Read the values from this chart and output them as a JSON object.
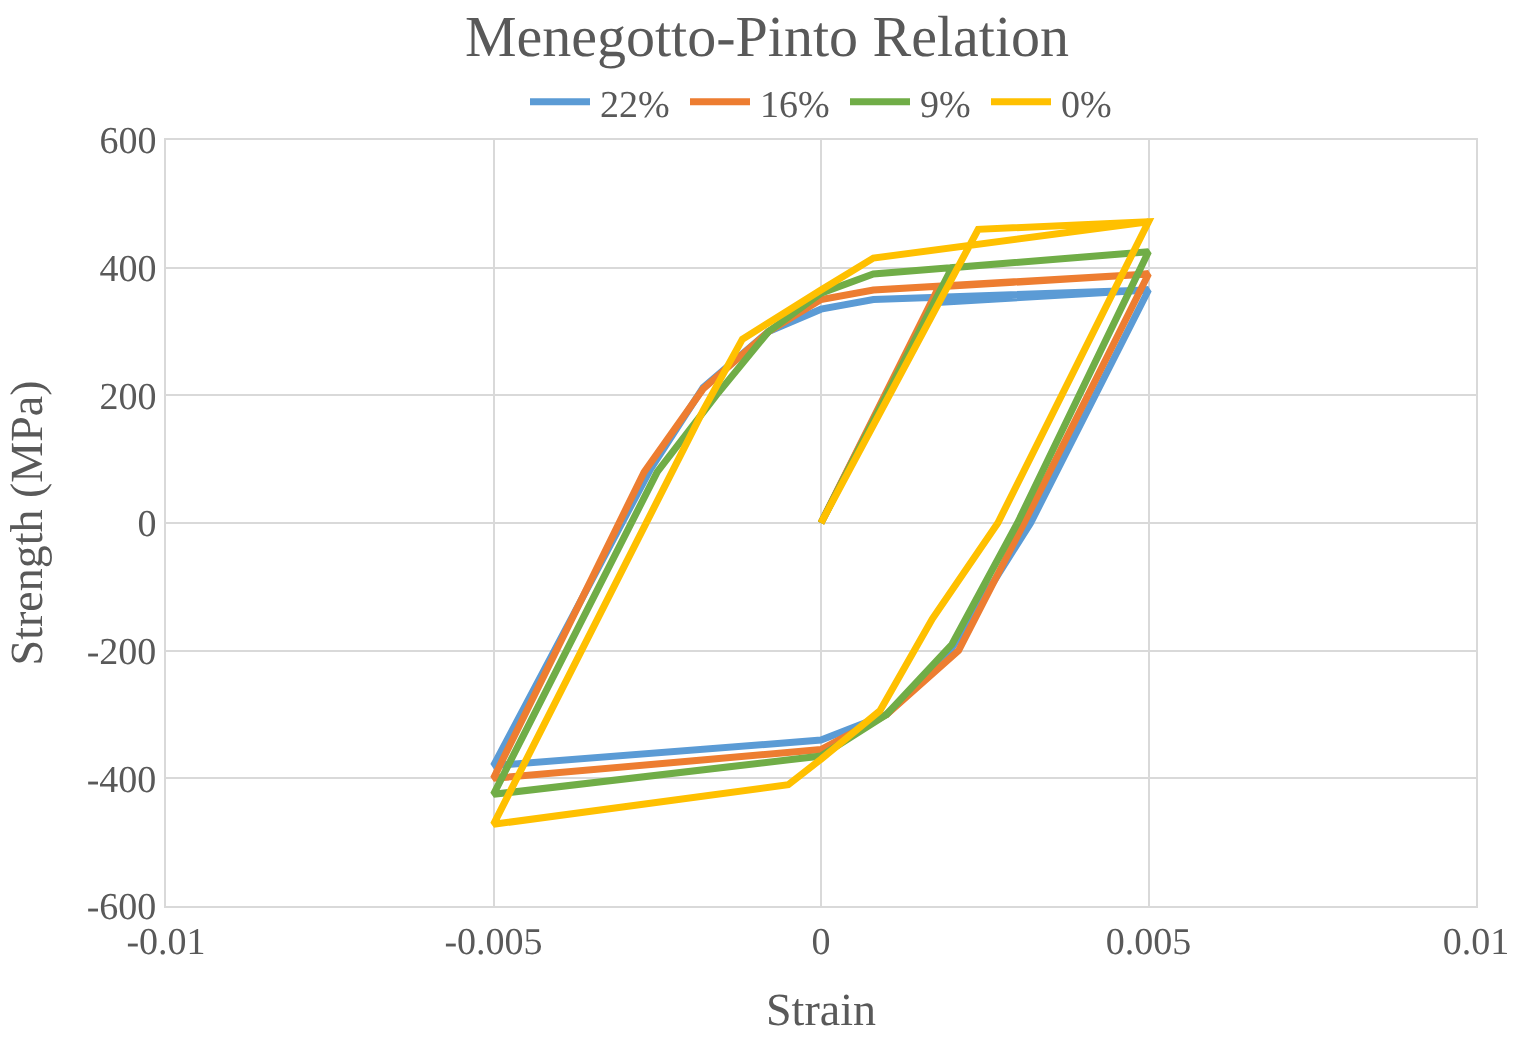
{
  "chart_data": {
    "type": "line",
    "title": "Menegotto-Pinto Relation",
    "xlabel": "Strain",
    "ylabel": "Strength (MPa)",
    "xlim": [
      -0.01,
      0.01
    ],
    "xticks": [
      -0.01,
      -0.005,
      0,
      0.005,
      0.01
    ],
    "ylim": [
      -600,
      600
    ],
    "yticks": [
      -600,
      -400,
      -200,
      0,
      200,
      400,
      600
    ],
    "grid": true,
    "legend": "top",
    "marker": "none",
    "line_style": "solid",
    "series": [
      {
        "name": "22%",
        "color": "#5b9bd5",
        "x": [
          0,
          0.0017,
          0.005,
          0.0032,
          0.0019,
          0.001,
          0,
          -0.005,
          -0.0026,
          -0.0018,
          -0.0008,
          0,
          0.0008,
          0.005
        ],
        "values": [
          0,
          345,
          365,
          0,
          -212,
          -300,
          -340,
          -380,
          85,
          212,
          300,
          335,
          350,
          365
        ]
      },
      {
        "name": "16%",
        "color": "#ed7d31",
        "x": [
          0,
          0.0018,
          0.005,
          0.0031,
          0.0021,
          0.001,
          0,
          -0.005,
          -0.0027,
          -0.0018,
          -0.0008,
          0,
          0.0008,
          0.005
        ],
        "values": [
          0,
          370,
          390,
          0,
          -200,
          -300,
          -355,
          -400,
          80,
          210,
          300,
          350,
          365,
          390
        ]
      },
      {
        "name": "9%",
        "color": "#70ad47",
        "x": [
          0,
          0.002,
          0.005,
          0.003,
          0.002,
          0.001,
          0,
          -0.005,
          -0.0025,
          -0.0016,
          -0.0008,
          0,
          0.0008,
          0.005
        ],
        "values": [
          0,
          400,
          425,
          0,
          -190,
          -300,
          -365,
          -425,
          80,
          200,
          300,
          360,
          390,
          425
        ]
      },
      {
        "name": "0%",
        "color": "#ffc000",
        "x": [
          0,
          0.0024,
          0.005,
          0.0027,
          0.0017,
          0.0009,
          0,
          -0.0005,
          -0.005,
          -0.0018,
          -0.0012,
          0,
          0.0008,
          0.005
        ],
        "values": [
          0,
          460,
          472,
          0,
          -150,
          -294,
          -370,
          -410,
          -472,
          176,
          288,
          365,
          415,
          472
        ]
      }
    ]
  }
}
